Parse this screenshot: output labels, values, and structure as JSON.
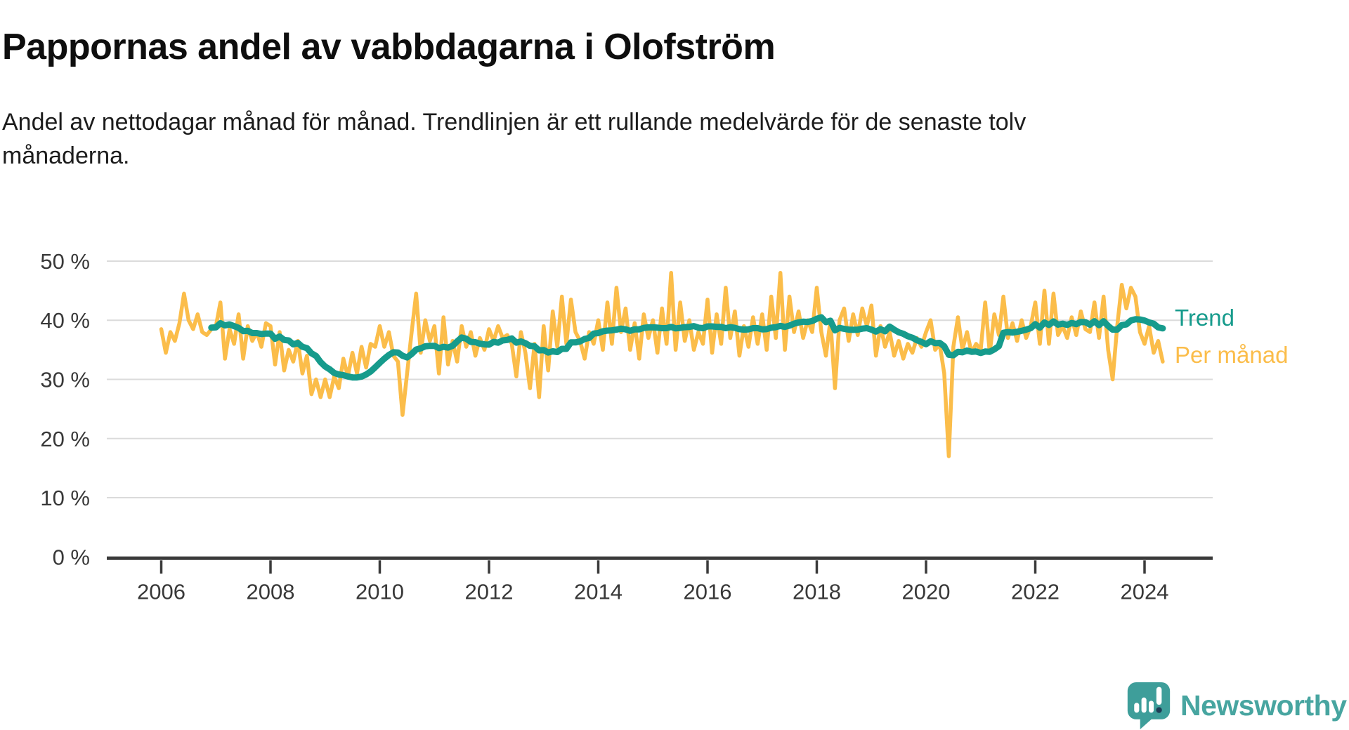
{
  "title": "Pappornas andel av vabbdagarna i Olofström",
  "subtitle": "Andel av nettodagar månad för månad. Trendlinjen är ett rullande medelvärde för de senaste tolv månaderna.",
  "branding": {
    "logo_text": "Newsworthy"
  },
  "colors": {
    "monthly": "#FBBD4A",
    "trend": "#169B8C",
    "grid": "#DBDBDB",
    "axis": "#3A3A3A",
    "tick_label": "#383838",
    "title_text": "#0E0E0E",
    "logo_text": "#47A5A0",
    "logo_bubble": "#3E9E9A",
    "logo_mark_dot": "#1E3C55"
  },
  "chart_data": {
    "type": "line",
    "title": "Pappornas andel av vabbdagarna i Olofström",
    "x_start": "2006-01",
    "x_end": "2024-05",
    "frequency": "monthly",
    "x_ticks": [
      2006,
      2008,
      2010,
      2012,
      2014,
      2016,
      2018,
      2020,
      2022,
      2024
    ],
    "y_ticks": [
      {
        "value": 0,
        "label": "0 %"
      },
      {
        "value": 10,
        "label": "10 %"
      },
      {
        "value": 20,
        "label": "20 %"
      },
      {
        "value": 30,
        "label": "30 %"
      },
      {
        "value": 40,
        "label": "40 %"
      },
      {
        "value": 50,
        "label": "50 %"
      }
    ],
    "ylim": [
      0,
      52
    ],
    "grid": true,
    "legend_position": "right-of-line-end",
    "series": [
      {
        "name": "Per månad",
        "unit": "%",
        "values": [
          38.5,
          34.5,
          38,
          36.5,
          39.5,
          44.5,
          40,
          38.5,
          41,
          38,
          37.5,
          38.5,
          39,
          43,
          33.5,
          38.5,
          36,
          41,
          33.5,
          39,
          36.5,
          38,
          35.5,
          39.5,
          39,
          32.5,
          38,
          31.5,
          35,
          33,
          36.5,
          31,
          34,
          27.5,
          30,
          27,
          30,
          27,
          30.5,
          28.5,
          33.5,
          30.5,
          34.5,
          31,
          35.5,
          32,
          36,
          35.5,
          39,
          35.5,
          38,
          34,
          33,
          24,
          31,
          38,
          44.5,
          34.5,
          40,
          36.5,
          39,
          31,
          40.5,
          32.5,
          36.5,
          33,
          39,
          35.5,
          38,
          34,
          37,
          35,
          38.5,
          36.5,
          39,
          37,
          37.5,
          36,
          30.5,
          38,
          34.5,
          28.5,
          36,
          27,
          39,
          31.5,
          41.5,
          35.5,
          44,
          36,
          43.5,
          38,
          36.5,
          33.5,
          38,
          36,
          40,
          35,
          43,
          36,
          45.5,
          38,
          42,
          35,
          39.5,
          33.5,
          41,
          37,
          40,
          34.5,
          42,
          36,
          48,
          35,
          43,
          36.5,
          40,
          35,
          38,
          36,
          43.5,
          34.5,
          41,
          36,
          45.5,
          37,
          41.5,
          34,
          39,
          35.5,
          40.5,
          36,
          41,
          35,
          44,
          37,
          48,
          35,
          44,
          38,
          41.5,
          37,
          40,
          38,
          45.5,
          38,
          34,
          40,
          28.5,
          40,
          42,
          36.5,
          41,
          37.5,
          42,
          39,
          42.5,
          34,
          39,
          35.5,
          38,
          34,
          36.5,
          33.5,
          36,
          34.5,
          37,
          35.5,
          38,
          40,
          35,
          36,
          31,
          17,
          35.5,
          40.5,
          35,
          38,
          34.5,
          36,
          35,
          43,
          34.5,
          41,
          37.5,
          44,
          37,
          39.5,
          36.5,
          40,
          37,
          39,
          43,
          36,
          45,
          36,
          44.5,
          37.5,
          39,
          37,
          40.5,
          37.5,
          41.5,
          38.5,
          38,
          43,
          37,
          44,
          35,
          30,
          39,
          46,
          42,
          45.5,
          44,
          38,
          36,
          39,
          34.5,
          36.5,
          33
        ]
      },
      {
        "name": "Trend",
        "unit": "%",
        "derived": "rolling mean of Per månad over the last 12 months"
      }
    ]
  }
}
